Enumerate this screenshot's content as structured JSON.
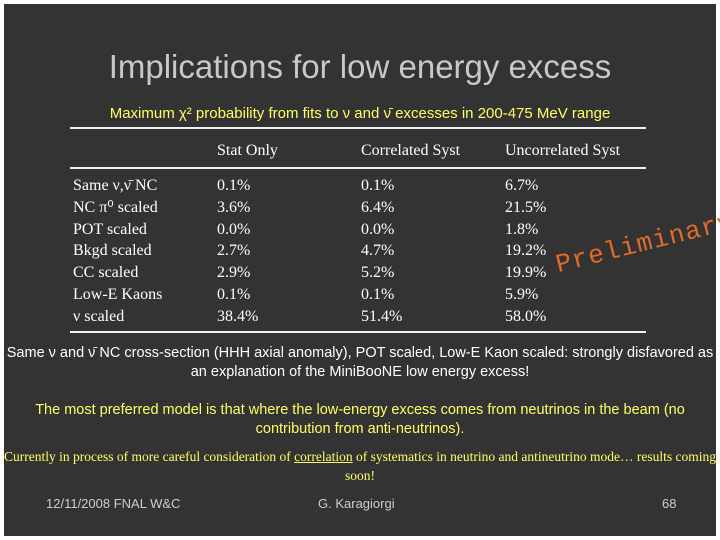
{
  "slide": {
    "title": "Implications for low energy excess",
    "subtitle": "Maximum χ² probability from fits to ν and ν̄ excesses in 200-475 MeV range",
    "table": {
      "headers": [
        "Stat Only",
        "Correlated Syst",
        "Uncorrelated Syst"
      ],
      "row_labels": [
        "Same ν,ν̄ NC",
        "NC π⁰ scaled",
        "POT scaled",
        "Bkgd scaled",
        "CC scaled",
        "Low-E Kaons",
        "ν scaled"
      ],
      "stat_only": [
        "0.1%",
        "3.6%",
        "0.0%",
        "2.7%",
        "2.9%",
        "0.1%",
        "38.4%"
      ],
      "correlated": [
        "0.1%",
        "6.4%",
        "0.0%",
        "4.7%",
        "5.2%",
        "0.1%",
        "51.4%"
      ],
      "uncorrelated": [
        "6.7%",
        "21.5%",
        "1.8%",
        "19.2%",
        "19.9%",
        "5.9%",
        "58.0%"
      ]
    },
    "stamp": "Preliminary",
    "note1": "Same ν and ν̄ NC cross-section (HHH axial anomaly), POT scaled, Low-E Kaon scaled: strongly disfavored as an explanation of the MiniBooNE low energy excess!",
    "note2": "The most preferred model is that where the low-energy excess comes from neutrinos in the beam (no contribution from anti-neutrinos).",
    "note3_pre": "Currently in process of more careful consideration of ",
    "note3_link": "correlation",
    "note3_post": " of systematics in neutrino and antineutrino mode… results coming soon!",
    "footer": {
      "date": "12/11/2008 FNAL W&C",
      "author": "G. Karagiorgi",
      "page": "68"
    }
  }
}
